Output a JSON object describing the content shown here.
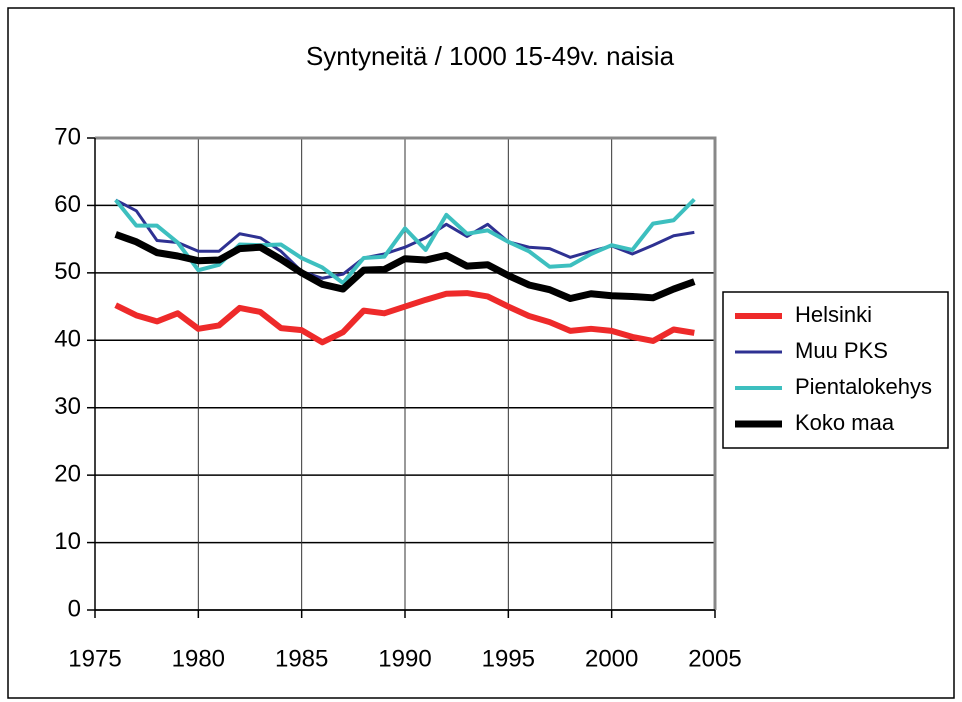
{
  "chart_data": {
    "type": "line",
    "title": "Syntyneitä / 1000 15-49v. naisia",
    "x": [
      1976,
      1977,
      1978,
      1979,
      1980,
      1981,
      1982,
      1983,
      1984,
      1985,
      1986,
      1987,
      1988,
      1989,
      1990,
      1991,
      1992,
      1993,
      1994,
      1995,
      1996,
      1997,
      1998,
      1999,
      2000,
      2001,
      2002,
      2003,
      2004
    ],
    "series": [
      {
        "name": "Helsinki",
        "color": "#ee2a2a",
        "values": [
          45.2,
          43.7,
          42.8,
          44.0,
          41.7,
          42.2,
          44.8,
          44.2,
          41.8,
          41.5,
          39.7,
          41.2,
          44.4,
          44.0,
          45.0,
          46.0,
          46.9,
          47.0,
          46.5,
          45.0,
          43.6,
          42.7,
          41.4,
          41.7,
          41.4,
          40.5,
          39.9,
          41.6,
          41.1
        ]
      },
      {
        "name": "Muu PKS",
        "color": "#2e3192",
        "values": [
          60.8,
          59.2,
          54.8,
          54.5,
          53.2,
          53.2,
          55.8,
          55.2,
          53.2,
          50.2,
          49.2,
          49.8,
          52.2,
          52.8,
          53.8,
          55.2,
          57.2,
          55.4,
          57.2,
          54.6,
          53.8,
          53.6,
          52.3,
          53.2,
          54.0,
          52.8,
          54.1,
          55.5,
          56.0
        ]
      },
      {
        "name": "Pientalokehys",
        "color": "#3dbfbf",
        "values": [
          60.8,
          57.0,
          57.0,
          54.5,
          50.4,
          51.2,
          54.2,
          54.1,
          54.2,
          52.2,
          50.8,
          48.5,
          52.2,
          52.4,
          56.6,
          53.4,
          58.6,
          55.8,
          56.3,
          54.6,
          53.2,
          50.9,
          51.1,
          52.8,
          54.1,
          53.4,
          57.3,
          57.8,
          60.9
        ]
      },
      {
        "name": "Koko maa",
        "color": "#000000",
        "values": [
          55.7,
          54.6,
          53.0,
          52.5,
          51.8,
          51.9,
          53.6,
          53.8,
          52.0,
          50.0,
          48.3,
          47.6,
          50.4,
          50.5,
          52.1,
          51.9,
          52.6,
          51.0,
          51.2,
          49.6,
          48.2,
          47.5,
          46.2,
          46.9,
          46.6,
          46.5,
          46.3,
          47.6,
          48.7
        ]
      }
    ],
    "xlim": [
      1975,
      2005
    ],
    "xticks": [
      1975,
      1980,
      1985,
      1990,
      1995,
      2000,
      2005
    ],
    "ylim": [
      0,
      70
    ],
    "yticks": [
      0,
      10,
      20,
      30,
      40,
      50,
      60,
      70
    ],
    "grid": true,
    "legend": "right"
  }
}
